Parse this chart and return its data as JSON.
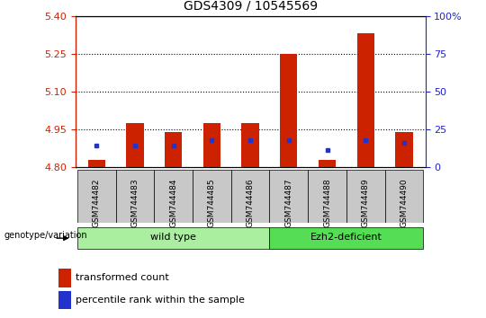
{
  "title": "GDS4309 / 10545569",
  "samples": [
    "GSM744482",
    "GSM744483",
    "GSM744484",
    "GSM744485",
    "GSM744486",
    "GSM744487",
    "GSM744488",
    "GSM744489",
    "GSM744490"
  ],
  "transformed_count": [
    4.828,
    4.975,
    4.94,
    4.975,
    4.975,
    5.25,
    4.828,
    5.33,
    4.94
  ],
  "percentile_rank": [
    14,
    14,
    14,
    18,
    18,
    18,
    11,
    18,
    16
  ],
  "ylim_left": [
    4.8,
    5.4
  ],
  "yticks_left": [
    4.8,
    4.95,
    5.1,
    5.25,
    5.4
  ],
  "ylim_right": [
    0,
    100
  ],
  "yticks_right": [
    0,
    25,
    50,
    75,
    100
  ],
  "ytick_right_labels": [
    "0",
    "25",
    "50",
    "75",
    "100%"
  ],
  "bar_color": "#CC2200",
  "blue_color": "#2233CC",
  "groups": [
    {
      "label": "wild type",
      "start": 0,
      "end": 4,
      "color": "#AAEEA0"
    },
    {
      "label": "Ezh2-deficient",
      "start": 5,
      "end": 8,
      "color": "#55DD55"
    }
  ],
  "group_label_prefix": "genotype/variation",
  "legend_items": [
    {
      "color": "#CC2200",
      "label": "transformed count"
    },
    {
      "color": "#2233CC",
      "label": "percentile rank within the sample"
    }
  ],
  "bar_width": 0.45,
  "baseline": 4.8,
  "grid_color": "black",
  "tick_color_left": "#CC2200",
  "tick_color_right": "#2222CC",
  "bg_plot": "#FFFFFF",
  "xtick_bg": "#C8C8C8"
}
